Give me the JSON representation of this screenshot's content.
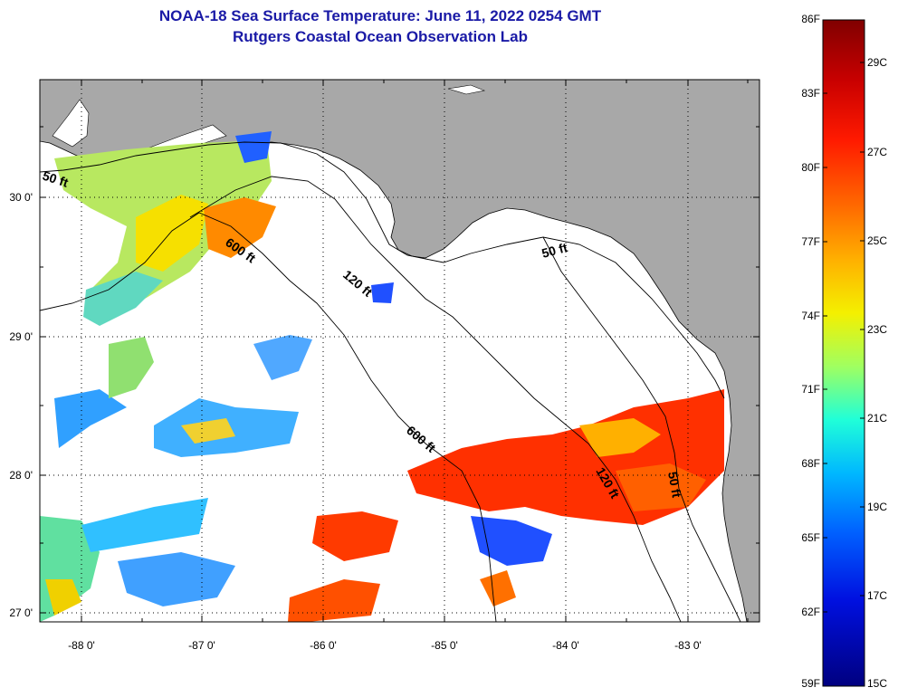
{
  "title": {
    "line1": "NOAA-18 Sea Surface Temperature:  June 11, 2022 0254 GMT",
    "line2": "Rutgers Coastal Ocean Observation Lab"
  },
  "map": {
    "x_ticks": [
      "-88 0'",
      "-87 0'",
      "-86 0'",
      "-85 0'",
      "-84 0'",
      "-83 0'"
    ],
    "y_ticks": [
      "30 0'",
      "29 0'",
      "28 0'",
      "27 0'"
    ],
    "land_color": "#a8a8a8",
    "no_data_color": "#ffffff"
  },
  "contours": [
    {
      "label": "50 ft"
    },
    {
      "label": "600 ft"
    },
    {
      "label": "120 ft"
    },
    {
      "label": "50 ft"
    },
    {
      "label": "600 ft"
    },
    {
      "label": "120 ft"
    },
    {
      "label": "50 ft"
    }
  ],
  "colorbar": {
    "fahrenheit_labels": [
      "86F",
      "83F",
      "80F",
      "77F",
      "74F",
      "71F",
      "68F",
      "65F",
      "62F",
      "59F"
    ],
    "celsius_labels": [
      "29C",
      "27C",
      "25C",
      "23C",
      "21C",
      "19C",
      "17C",
      "15C"
    ],
    "colors": [
      "#800000",
      "#d00000",
      "#ff2000",
      "#ff7000",
      "#ffc000",
      "#e8ff10",
      "#80ff80",
      "#10ffe8",
      "#00a0ff",
      "#0040ff",
      "#0000c0",
      "#000080"
    ]
  }
}
